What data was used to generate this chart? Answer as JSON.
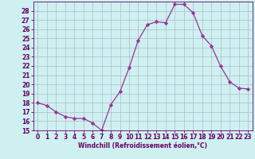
{
  "x": [
    0,
    1,
    2,
    3,
    4,
    5,
    6,
    7,
    8,
    9,
    10,
    11,
    12,
    13,
    14,
    15,
    16,
    17,
    18,
    19,
    20,
    21,
    22,
    23
  ],
  "y": [
    18.0,
    17.7,
    17.0,
    16.5,
    16.3,
    16.3,
    15.8,
    15.0,
    17.8,
    19.2,
    21.8,
    24.8,
    26.5,
    26.8,
    26.7,
    28.7,
    28.7,
    27.8,
    25.3,
    24.2,
    22.0,
    20.3,
    19.6,
    19.5
  ],
  "line_color": "#993399",
  "marker": "D",
  "marker_size": 2.2,
  "bg_color": "#cff0f0",
  "grid_color": "#aabbcc",
  "xlabel": "Windchill (Refroidissement éolien,°C)",
  "ylim": [
    15,
    29
  ],
  "xlim": [
    -0.5,
    23.5
  ],
  "yticks": [
    15,
    16,
    17,
    18,
    19,
    20,
    21,
    22,
    23,
    24,
    25,
    26,
    27,
    28
  ],
  "xticks": [
    0,
    1,
    2,
    3,
    4,
    5,
    6,
    7,
    8,
    9,
    10,
    11,
    12,
    13,
    14,
    15,
    16,
    17,
    18,
    19,
    20,
    21,
    22,
    23
  ],
  "tick_color": "#660066",
  "label_fontsize": 5.5,
  "tick_fontsize": 5.5
}
